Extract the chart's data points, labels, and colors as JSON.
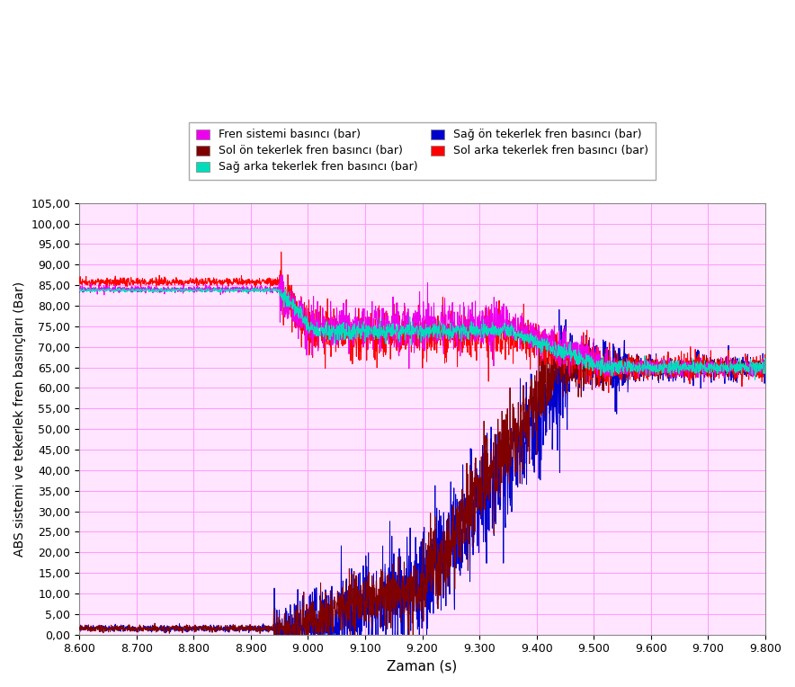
{
  "xlabel": "Zaman (s)",
  "ylabel": "ABS sistemi ve tekerlek fren basınçları (Bar)",
  "xlim": [
    8600,
    9800
  ],
  "ylim": [
    0.0,
    105.0
  ],
  "yticks": [
    0.0,
    5.0,
    10.0,
    15.0,
    20.0,
    25.0,
    30.0,
    35.0,
    40.0,
    45.0,
    50.0,
    55.0,
    60.0,
    65.0,
    70.0,
    75.0,
    80.0,
    85.0,
    90.0,
    95.0,
    100.0,
    105.0
  ],
  "xticks": [
    8600,
    8700,
    8800,
    8900,
    9000,
    9100,
    9200,
    9300,
    9400,
    9500,
    9600,
    9700,
    9800
  ],
  "grid_color": "#FF99FF",
  "background_color": "#FFE5FF",
  "colors": {
    "fren_sistemi": "#EE00EE",
    "sag_arka": "#00DDBB",
    "sol_arka": "#FF0000",
    "sol_on": "#800000",
    "sag_on": "#0000CC"
  },
  "legend": [
    {
      "label": "Fren sistemi basıncı (bar)",
      "color": "#EE00EE"
    },
    {
      "label": "Sol ön tekerlek fren basıncı (bar)",
      "color": "#800000"
    },
    {
      "label": "Sağ arka tekerlek fren basıncı (bar)",
      "color": "#00DDBB"
    },
    {
      "label": "Sağ ön tekerlek fren basıncı (bar)",
      "color": "#0000CC"
    },
    {
      "label": "Sol arka tekerlek fren basıncı (bar)",
      "color": "#FF0000"
    }
  ],
  "linewidth": 0.7
}
